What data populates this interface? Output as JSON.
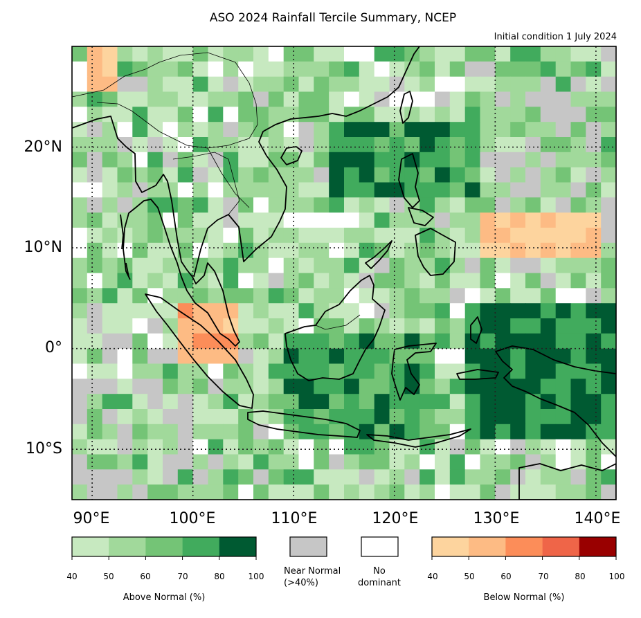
{
  "title": "ASO 2024 Rainfall Tercile Summary, NCEP",
  "subtitle": "Initial condition 1 July 2024",
  "map": {
    "lon_range": [
      88,
      142
    ],
    "lat_range": [
      -15,
      30
    ],
    "lat_labels": [
      "20°N",
      "10°N",
      "0°",
      "10°S"
    ],
    "lon_labels": [
      "90°E",
      "100°E",
      "110°E",
      "120°E",
      "130°E",
      "140°E"
    ],
    "gridlines": "dotted",
    "colors": {
      "above": [
        "#c7e9c0",
        "#a1d99b",
        "#74c476",
        "#41ab5d",
        "#005a32"
      ],
      "below": [
        "#fdd49e",
        "#fdbb84",
        "#fc8d59",
        "#ef6548",
        "#990000"
      ],
      "near_normal": "#c6c6c6",
      "no_dominant": "#ffffff",
      "coastline": "#000000"
    }
  },
  "legend": {
    "above": {
      "ticks": [
        "40",
        "50",
        "60",
        "70",
        "80",
        "100"
      ],
      "title": "Above Normal (%)"
    },
    "near_normal": {
      "line1": "Near Normal",
      "line2": "(>40%)"
    },
    "no_dominant": {
      "line1": "No",
      "line2": "dominant"
    },
    "below": {
      "ticks": [
        "40",
        "50",
        "60",
        "70",
        "80",
        "100"
      ],
      "title": "Below Normal (%)"
    }
  }
}
